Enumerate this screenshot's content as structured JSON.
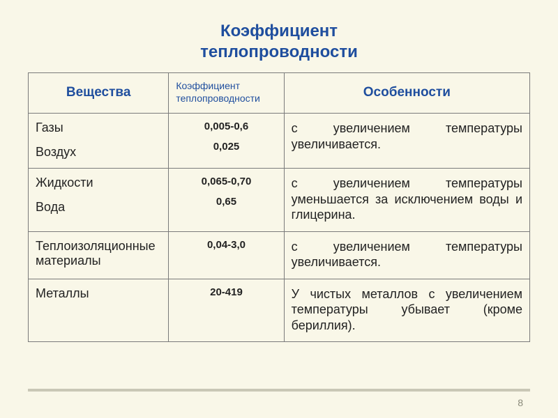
{
  "title_line1": "Коэффициент",
  "title_line2": "теплопроводности",
  "header": {
    "col1": "Вещества",
    "col2": "Коэффициент теплопроводности",
    "col3": "Особенности"
  },
  "rows": [
    {
      "substance1": "Газы",
      "substance2": "Воздух",
      "coef1": "0,005-0,6",
      "coef2": "0,025",
      "feature": "с увеличением температуры увеличивается."
    },
    {
      "substance1": "Жидкости",
      "substance2": "Вода",
      "coef1": "0,065-0,70",
      "coef2": "0,65",
      "feature": "с увеличением температуры уменьшается за исключением воды и глицерина."
    },
    {
      "substance1": "Теплоизоляционные материалы",
      "substance2": "",
      "coef1": "0,04-3,0",
      "coef2": "",
      "feature": "с увеличением температуры увеличивается."
    },
    {
      "substance1": "Металлы",
      "substance2": "",
      "coef1": "20-419",
      "coef2": "",
      "feature": "У чистых металлов с увеличением температуры убывает (кроме бериллия)."
    }
  ],
  "page_number": "8",
  "colors": {
    "title": "#1f4e9e",
    "text": "#222222",
    "slide_bg": "#f9f7e8",
    "border": "#7a7a7a",
    "footer_line": "#c9c7b6",
    "page_num": "#8a8a7a"
  }
}
